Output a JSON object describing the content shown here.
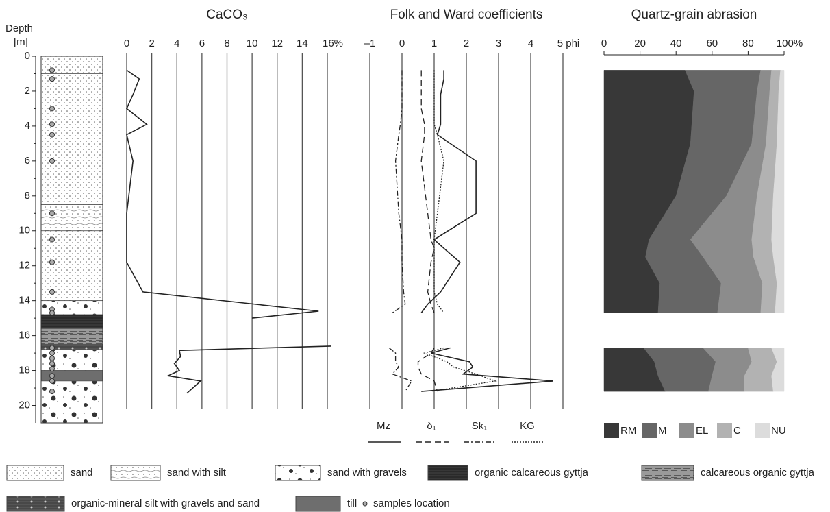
{
  "chart_data": [
    {
      "type": "lithology",
      "ylabel": [
        "Depth",
        "[m]"
      ],
      "ylim": [
        0,
        21
      ],
      "yticks": [
        0,
        2,
        4,
        6,
        8,
        10,
        12,
        14,
        16,
        18,
        20
      ],
      "yminorticks": [
        1,
        3,
        5,
        7,
        9,
        11,
        13,
        15,
        17,
        19
      ],
      "layers": [
        {
          "top": 0,
          "bottom": 1,
          "type": "sand"
        },
        {
          "top": 1,
          "bottom": 8.5,
          "type": "sand"
        },
        {
          "top": 8.5,
          "bottom": 10,
          "type": "sand with silt"
        },
        {
          "top": 10,
          "bottom": 14,
          "type": "sand"
        },
        {
          "top": 14,
          "bottom": 14.8,
          "type": "sand with gravels"
        },
        {
          "top": 14.8,
          "bottom": 15.6,
          "type": "organic calcareous gyttja"
        },
        {
          "top": 15.6,
          "bottom": 16.5,
          "type": "calcareous organic gyttja"
        },
        {
          "top": 16.5,
          "bottom": 16.8,
          "type": "organic-mineral silt with gravels and sand"
        },
        {
          "top": 16.8,
          "bottom": 18,
          "type": "sand with gravels"
        },
        {
          "top": 18,
          "bottom": 18.6,
          "type": "till"
        },
        {
          "top": 18.6,
          "bottom": 21,
          "type": "sand with gravels"
        }
      ],
      "samples": [
        0.8,
        1.3,
        3,
        3.9,
        4.5,
        6,
        9,
        10.5,
        11.8,
        13.5,
        14.5,
        14.7,
        16.7,
        17,
        17.3,
        17.6,
        17.9,
        18.3,
        18.6,
        19.2
      ],
      "legend": [
        "sand",
        "sand with silt",
        "sand with gravels",
        "organic calcareous gyttja",
        "calcareous organic gyttja",
        "organic-mineral silt with gravels and sand",
        "till"
      ],
      "samples_label": "samples location"
    },
    {
      "type": "line",
      "title": "CaCO₃",
      "xlim": [
        0,
        16
      ],
      "xticks": [
        0,
        2,
        4,
        6,
        8,
        10,
        12,
        14,
        {
          "value": 16,
          "label": "16%"
        }
      ],
      "grid": true,
      "depth": [
        0.8,
        1.3,
        2.2,
        3,
        3.9,
        4.5,
        6,
        9,
        11.8,
        13.5,
        14.6,
        15.0,
        null,
        16.6,
        16.85,
        17.2,
        17.6,
        18.0,
        18.3,
        18.6,
        19.3
      ],
      "series": [
        {
          "color": "#222222",
          "style": "solid",
          "values": [
            0,
            1,
            0.5,
            0,
            1.6,
            0,
            0.5,
            0,
            0,
            1.3,
            15.3,
            10,
            null,
            16.3,
            4.2,
            4.3,
            3.8,
            4.2,
            3.3,
            5.9,
            4.8
          ]
        }
      ]
    },
    {
      "type": "line",
      "title": "Folk and Ward coefficients",
      "xlim": [
        -1,
        5
      ],
      "xticks": [
        {
          "value": -1,
          "label": "–1"
        },
        0,
        1,
        2,
        3,
        4,
        {
          "value": 5,
          "label": "5 phi"
        }
      ],
      "grid": true,
      "depth": [
        0.8,
        1.3,
        2.2,
        3,
        3.9,
        4.5,
        6,
        9,
        10.5,
        11,
        11.8,
        13.5,
        14.2,
        14.7,
        null,
        16.7,
        17,
        17.5,
        17.8,
        18.2,
        18.6,
        19.2
      ],
      "series": [
        {
          "name": "Mz",
          "color": "#222222",
          "style": "solid",
          "values": [
            1.3,
            1.3,
            1.2,
            1.2,
            1.2,
            1.1,
            2.3,
            2.3,
            1.0,
            1.3,
            1.8,
            1.2,
            0.8,
            0.6,
            null,
            1.5,
            0.9,
            2.1,
            2.2,
            1.9,
            4.7,
            0.6
          ]
        },
        {
          "name": "δ₁",
          "color": "#222222",
          "style": "dashed",
          "values": [
            0.6,
            0.6,
            0.6,
            0.6,
            0.7,
            0.7,
            0.6,
            0.8,
            0.9,
            1.0,
            0.9,
            0.8,
            0.9,
            1.0,
            null,
            1.0,
            0.9,
            0.5,
            0.5,
            0.6,
            1.0,
            1.1
          ]
        },
        {
          "name": "Sk₁",
          "color": "#222222",
          "style": "dashdot",
          "values": [
            0,
            0,
            0,
            0,
            -0.05,
            -0.1,
            -0.2,
            -0.1,
            0,
            0,
            0,
            0.05,
            0.1,
            -0.3,
            null,
            -0.4,
            -0.2,
            -0.2,
            -0.1,
            -0.3,
            0.3,
            0.1
          ]
        },
        {
          "name": "KG",
          "color": "#222222",
          "style": "dotted",
          "values": [
            1.0,
            1.0,
            1.0,
            1.0,
            1.0,
            1.1,
            1.3,
            1.1,
            1.0,
            1.0,
            1.0,
            1.0,
            1.1,
            1.3,
            null,
            1.3,
            0.7,
            1.4,
            1.6,
            2.3,
            2.9,
            0.9
          ]
        }
      ]
    },
    {
      "type": "stacked_area",
      "title": "Quartz-grain abrasion",
      "xlim": [
        0,
        100
      ],
      "xticks": [
        0,
        20,
        40,
        60,
        80,
        {
          "value": 100,
          "label": "100%"
        }
      ],
      "grid": false,
      "depth": [
        0.8,
        2,
        5,
        8,
        10.5,
        11.5,
        13,
        14.7,
        null,
        16.7,
        17.5,
        18.3,
        19.2
      ],
      "series": [
        {
          "name": "RM",
          "color": "#383838",
          "values": [
            45,
            50,
            48,
            40,
            25,
            23,
            31,
            30,
            null,
            22,
            28,
            30,
            34
          ]
        },
        {
          "name": "M",
          "color": "#666666",
          "values": [
            42,
            35,
            34,
            28,
            23,
            32,
            34,
            33,
            null,
            33,
            34,
            30,
            24
          ]
        },
        {
          "name": "EL",
          "color": "#8c8c8c",
          "values": [
            6,
            7,
            8,
            17,
            34,
            28,
            23,
            24,
            null,
            25,
            20,
            18,
            20
          ]
        },
        {
          "name": "C",
          "color": "#b2b2b2",
          "values": [
            5,
            5,
            6,
            9,
            11,
            11,
            8,
            8,
            null,
            13,
            14,
            15,
            16
          ]
        },
        {
          "name": "NU",
          "color": "#dcdcdc",
          "values": [
            2,
            3,
            4,
            6,
            7,
            6,
            4,
            5,
            null,
            7,
            4,
            7,
            6
          ]
        }
      ]
    }
  ]
}
